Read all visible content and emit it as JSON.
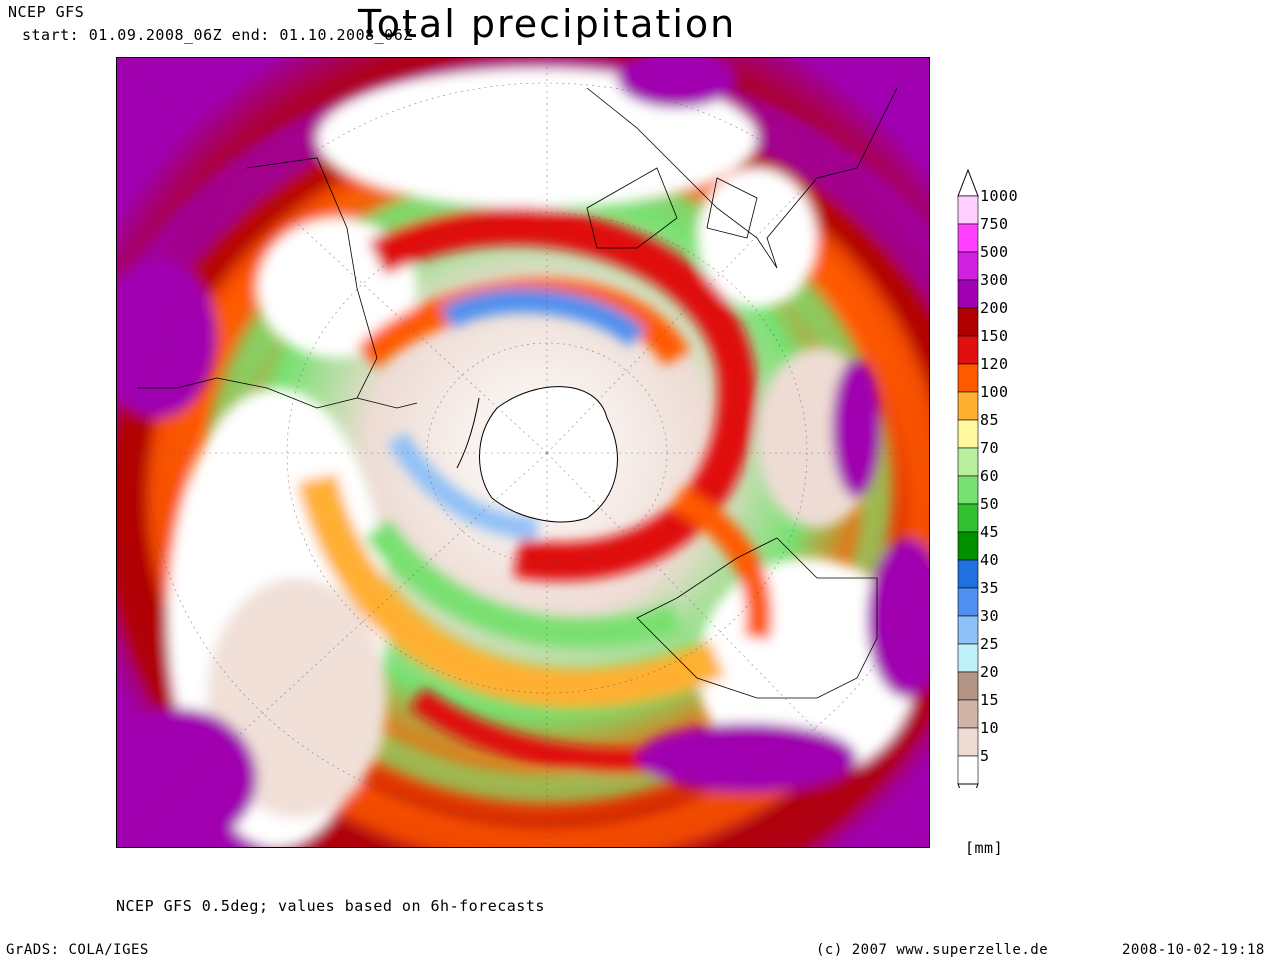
{
  "header": {
    "model": "NCEP GFS",
    "period": "start: 01.09.2008_06Z end: 01.10.2008_06Z",
    "title": "Total precipitation"
  },
  "legend": {
    "units": "[mm]",
    "levels": [
      {
        "label": "1000",
        "color": "#ffd0ff"
      },
      {
        "label": "750",
        "color": "#ff40ff"
      },
      {
        "label": "500",
        "color": "#d020e0"
      },
      {
        "label": "300",
        "color": "#a000b0"
      },
      {
        "label": "200",
        "color": "#b00000"
      },
      {
        "label": "150",
        "color": "#e01010"
      },
      {
        "label": "120",
        "color": "#ff5a00"
      },
      {
        "label": "100",
        "color": "#ffb030"
      },
      {
        "label": "85",
        "color": "#fff8a0"
      },
      {
        "label": "70",
        "color": "#b8f0a0"
      },
      {
        "label": "60",
        "color": "#78e070"
      },
      {
        "label": "50",
        "color": "#30c030"
      },
      {
        "label": "45",
        "color": "#009000"
      },
      {
        "label": "40",
        "color": "#2070e0"
      },
      {
        "label": "35",
        "color": "#5090f0"
      },
      {
        "label": "30",
        "color": "#90c0f8"
      },
      {
        "label": "25",
        "color": "#c0f0f8"
      },
      {
        "label": "20",
        "color": "#b49484"
      },
      {
        "label": "15",
        "color": "#d0b4a8"
      },
      {
        "label": "10",
        "color": "#eedcd4"
      },
      {
        "label": "5",
        "color": "#ffffff"
      }
    ]
  },
  "footnote": "NCEP GFS 0.5deg; values based on 6h-forecasts",
  "footer": {
    "grads": "GrADS: COLA/IGES",
    "copyright": "(c) 2007 www.superzelle.de",
    "timestamp": "2008-10-02-19:18"
  }
}
